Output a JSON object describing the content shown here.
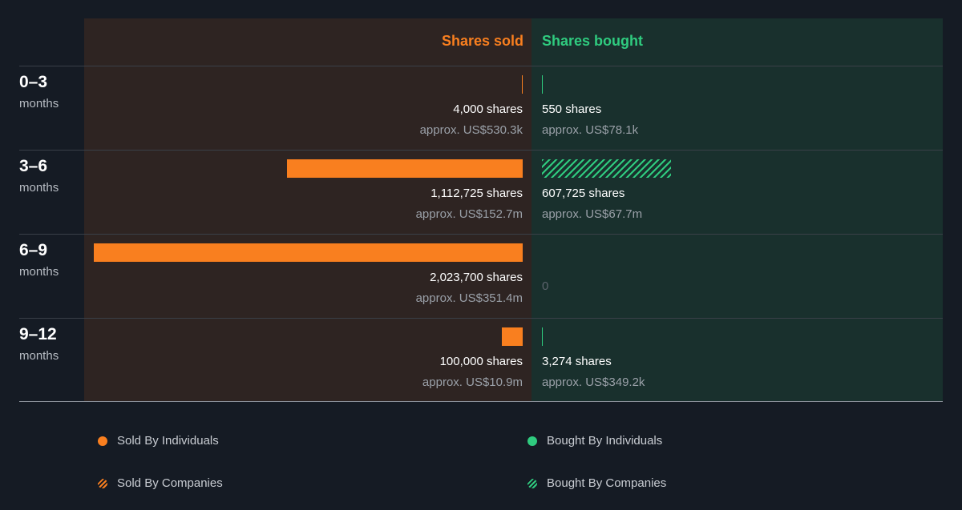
{
  "chart_data": {
    "type": "bar",
    "headers": {
      "sold": "Shares sold",
      "bought": "Shares bought"
    },
    "periods": [
      {
        "label": "0–3",
        "unit": "months",
        "sold": {
          "value": 4000,
          "shares_text": "4,000 shares",
          "approx_text": "approx. US$530.3k",
          "kind": "individuals"
        },
        "bought": {
          "value": 550,
          "shares_text": "550 shares",
          "approx_text": "approx. US$78.1k",
          "kind": "individuals"
        }
      },
      {
        "label": "3–6",
        "unit": "months",
        "sold": {
          "value": 1112725,
          "shares_text": "1,112,725 shares",
          "approx_text": "approx. US$152.7m",
          "kind": "individuals"
        },
        "bought": {
          "value": 607725,
          "shares_text": "607,725 shares",
          "approx_text": "approx. US$67.7m",
          "kind": "companies"
        }
      },
      {
        "label": "6–9",
        "unit": "months",
        "sold": {
          "value": 2023700,
          "shares_text": "2,023,700 shares",
          "approx_text": "approx. US$351.4m",
          "kind": "individuals"
        },
        "bought": {
          "value": 0,
          "shares_text": "0",
          "approx_text": "",
          "kind": "individuals"
        }
      },
      {
        "label": "9–12",
        "unit": "months",
        "sold": {
          "value": 100000,
          "shares_text": "100,000 shares",
          "approx_text": "approx. US$10.9m",
          "kind": "individuals"
        },
        "bought": {
          "value": 3274,
          "shares_text": "3,274 shares",
          "approx_text": "approx. US$349.2k",
          "kind": "individuals"
        }
      }
    ],
    "legend": [
      {
        "label": "Sold By Individuals",
        "style": "sold"
      },
      {
        "label": "Bought By Individuals",
        "style": "bought"
      },
      {
        "label": "Sold By Companies",
        "style": "sold-co"
      },
      {
        "label": "Bought By Companies",
        "style": "bought-co"
      }
    ],
    "colors": {
      "sold": "#f97f1f",
      "bought": "#2fcb7f",
      "background": "#151b24"
    }
  }
}
